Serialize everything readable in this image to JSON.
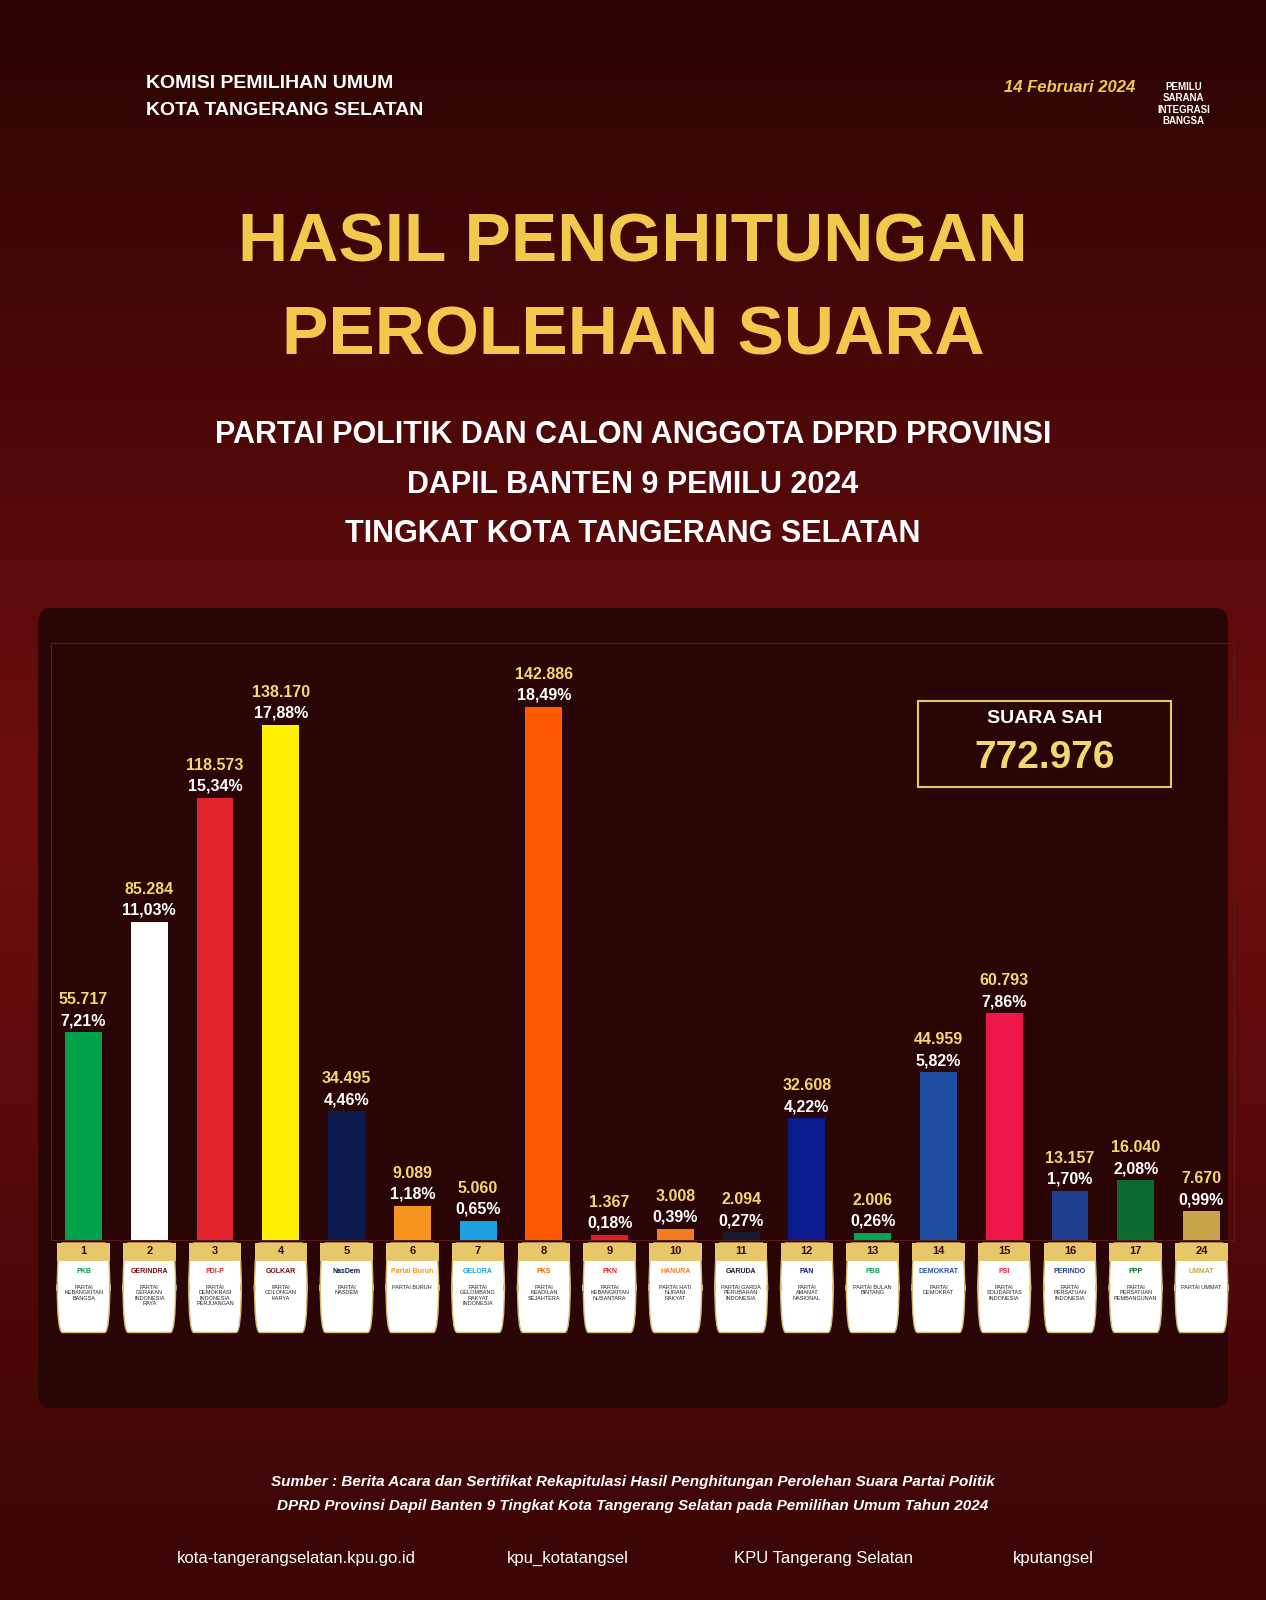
{
  "header": {
    "organization_lines": [
      "KOMISI PEMILIHAN UMUM",
      "KOTA TANGERANG SELATAN"
    ],
    "date_badge": "14 Februari 2024",
    "tagline": "PEMILU SARANA INTEGRASI BANGSA"
  },
  "chart_data": {
    "type": "bar",
    "title_lines": [
      "HASIL PENGHITUNGAN",
      "PEROLEHAN SUARA"
    ],
    "subtitle_lines": [
      "PARTAI POLITIK DAN CALON ANGGOTA DPRD PROVINSI",
      "DAPIL BANTEN 9 PEMILU 2024",
      "TINGKAT KOTA TANGERANG SELATAN"
    ],
    "categories": [
      "1",
      "2",
      "3",
      "4",
      "5",
      "6",
      "7",
      "8",
      "9",
      "10",
      "11",
      "12",
      "13",
      "14",
      "15",
      "16",
      "17",
      "24"
    ],
    "logo_texts": [
      "PKB",
      "GERINDRA",
      "PDI-P",
      "GOLKAR",
      "NasDem",
      "Partai Buruh",
      "GELORA",
      "PKS",
      "PKN",
      "HANURA",
      "GARUDA",
      "PAN",
      "PBB",
      "DEMOKRAT",
      "PSI",
      "PERINDO",
      "PPP",
      "UMMAT"
    ],
    "party_names": [
      "PARTAI KEBANGKITAN BANGSA",
      "PARTAI GERAKAN INDONESIA RAYA",
      "PARTAI DEMOKRASI INDONESIA PERJUANGAN",
      "PARTAI GOLONGAN KARYA",
      "PARTAI NASDEM",
      "PARTAI BURUH",
      "PARTAI GELOMBANG RAKYAT INDONESIA",
      "PARTAI KEADILAN SEJAHTERA",
      "PARTAI KEBANGKITAN NUSANTARA",
      "PARTAI HATI NURANI RAKYAT",
      "PARTAI GARDA PERUBAHAN INDONESIA",
      "PARTAI AMANAT NASIONAL",
      "PARTAI BULAN BINTANG",
      "PARTAI DEMOKRAT",
      "PARTAI SOLIDARITAS INDONESIA",
      "PARTAI PERSATUAN INDONESIA",
      "PARTAI PERSATUAN PEMBANGUNAN",
      "PARTAI UMMAT"
    ],
    "values": [
      55717,
      85284,
      118573,
      138170,
      34495,
      9089,
      5060,
      142886,
      1367,
      3008,
      2094,
      32608,
      2006,
      44959,
      60793,
      13157,
      16040,
      7670
    ],
    "value_labels": [
      "55.717",
      "85.284",
      "118.573",
      "138.170",
      "34.495",
      "9.089",
      "5.060",
      "142.886",
      "1.367",
      "3.008",
      "2.094",
      "32.608",
      "2.006",
      "44.959",
      "60.793",
      "13.157",
      "16.040",
      "7.670"
    ],
    "percentages": [
      7.21,
      11.03,
      15.34,
      17.88,
      4.46,
      1.18,
      0.65,
      18.49,
      0.18,
      0.39,
      0.27,
      4.22,
      0.26,
      5.82,
      7.86,
      1.7,
      2.08,
      0.99
    ],
    "percentage_labels": [
      "7,21%",
      "11,03%",
      "15,34%",
      "17,88%",
      "4,46%",
      "1,18%",
      "0,65%",
      "18,49%",
      "0,18%",
      "0,39%",
      "0,27%",
      "4,22%",
      "0,26%",
      "5,82%",
      "7,86%",
      "1,70%",
      "2,08%",
      "0,99%"
    ],
    "colors": [
      "#00a14b",
      "#ffffff",
      "#e3242b",
      "#fff200",
      "#0c1b4d",
      "#f7941d",
      "#1ba1e2",
      "#ff5a00",
      "#e31e24",
      "#f47c20",
      "#1a1a2e",
      "#0a1a8c",
      "#00a651",
      "#1f4ea1",
      "#ee1848",
      "#1e3f8f",
      "#0b6b2f",
      "#c8a44a"
    ],
    "total_label": "SUARA SAH",
    "total_votes": 772976,
    "total_votes_label": "772.976",
    "ylim": [
      0,
      160000
    ],
    "grid": false,
    "data_labels": true,
    "tick_labels": "x"
  },
  "footer": {
    "source_lines": [
      "Sumber : Berita Acara dan Sertifikat Rekapitulasi Hasil Penghitungan Perolehan Suara Partai Politik",
      "DPRD Provinsi Dapil Banten 9 Tingkat Kota Tangerang Selatan pada Pemilihan Umum Tahun 2024"
    ],
    "links": [
      "kota-tangerangselatan.kpu.go.id",
      "kpu_kotatangsel",
      "KPU Tangerang Selatan",
      "kputangsel"
    ]
  }
}
